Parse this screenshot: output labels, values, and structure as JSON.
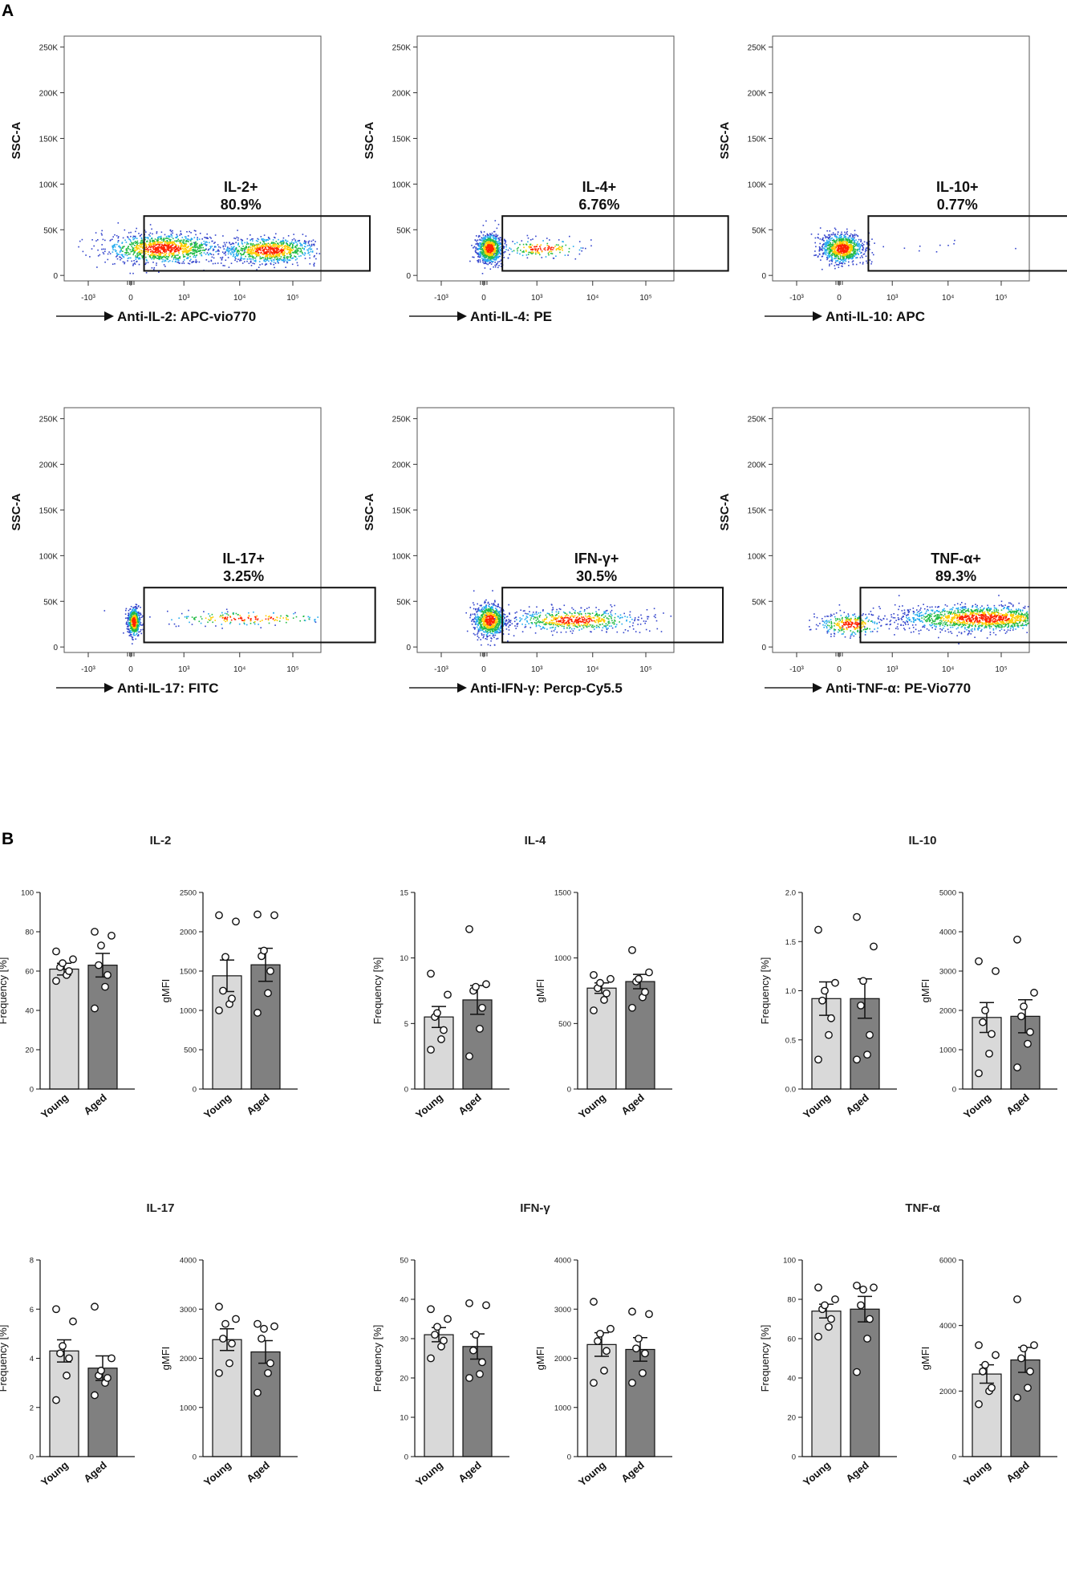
{
  "panel_labels": {
    "a": "A",
    "b": "B"
  },
  "colors": {
    "bar_young": "#d9d9d9",
    "bar_aged": "#808080",
    "gate": "#111111",
    "dots_low": "#3344cc",
    "dots_mid": "#22bb44",
    "dots_high": "#ff2200"
  },
  "chart_data": [
    {
      "type": "scatter",
      "kind": "flow",
      "ylabel": "SSC-A",
      "xlabel": "Anti-IL-2: APC-vio770",
      "yticks": [
        "0",
        "50K",
        "100K",
        "150K",
        "200K",
        "250K"
      ],
      "xticks": [
        "-10³",
        "0",
        "10³",
        "10⁴",
        "10⁵"
      ],
      "gate_label": "IL-2+",
      "gate_pct": "80.9%",
      "gate_x": [
        0.25,
        4.5
      ],
      "gate_y": [
        5,
        65
      ],
      "populations": [
        {
          "x": 0.6,
          "xsd": 0.55,
          "y": 30,
          "ysd": 8,
          "n": 1100
        },
        {
          "x": 2.6,
          "xsd": 0.45,
          "y": 28,
          "ysd": 7,
          "n": 900
        }
      ]
    },
    {
      "type": "scatter",
      "kind": "flow",
      "ylabel": "SSC-A",
      "xlabel": "Anti-IL-4: PE",
      "yticks": [
        "0",
        "50K",
        "100K",
        "150K",
        "200K",
        "250K"
      ],
      "xticks": [
        "-10³",
        "0",
        "10³",
        "10⁴",
        "10⁵"
      ],
      "gate_label": "IL-4+",
      "gate_pct": "6.76%",
      "gate_x": [
        0.35,
        4.6
      ],
      "gate_y": [
        5,
        65
      ],
      "populations": [
        {
          "x": 0.1,
          "xsd": 0.12,
          "y": 30,
          "ysd": 8,
          "n": 800
        },
        {
          "x": 1.1,
          "xsd": 0.4,
          "y": 30,
          "ysd": 5,
          "n": 160
        }
      ]
    },
    {
      "type": "scatter",
      "kind": "flow",
      "ylabel": "SSC-A",
      "xlabel": "Anti-IL-10: APC",
      "yticks": [
        "0",
        "50K",
        "100K",
        "150K",
        "200K",
        "250K"
      ],
      "xticks": [
        "-10³",
        "0",
        "10³",
        "10⁴",
        "10⁵"
      ],
      "gate_label": "IL-10+",
      "gate_pct": "0.77%",
      "gate_x": [
        0.55,
        4.5
      ],
      "gate_y": [
        5,
        65
      ],
      "populations": [
        {
          "x": 0.05,
          "xsd": 0.2,
          "y": 30,
          "ysd": 8,
          "n": 900
        },
        {
          "x": 2.3,
          "xsd": 1.0,
          "y": 27,
          "ysd": 6,
          "n": 12
        }
      ]
    },
    {
      "type": "scatter",
      "kind": "flow",
      "ylabel": "SSC-A",
      "xlabel": "Anti-IL-17: FITC",
      "yticks": [
        "0",
        "50K",
        "100K",
        "150K",
        "200K",
        "250K"
      ],
      "xticks": [
        "-10³",
        "0",
        "10³",
        "10⁴",
        "10⁵"
      ],
      "gate_label": "IL-17+",
      "gate_pct": "3.25%",
      "gate_x": [
        0.25,
        4.6
      ],
      "gate_y": [
        5,
        65
      ],
      "populations": [
        {
          "x": 0.05,
          "xsd": 0.06,
          "y": 28,
          "ysd": 8,
          "n": 500
        },
        {
          "x": 2.2,
          "xsd": 0.8,
          "y": 32,
          "ysd": 4,
          "n": 180
        }
      ]
    },
    {
      "type": "scatter",
      "kind": "flow",
      "ylabel": "SSC-A",
      "xlabel": "Anti-IFN-γ: Percp-Cy5.5",
      "yticks": [
        "0",
        "50K",
        "100K",
        "150K",
        "200K",
        "250K"
      ],
      "xticks": [
        "-10³",
        "0",
        "10³",
        "10⁴",
        "10⁵"
      ],
      "gate_label": "IFN-γ+",
      "gate_pct": "30.5%",
      "gate_x": [
        0.35,
        4.5
      ],
      "gate_y": [
        5,
        65
      ],
      "populations": [
        {
          "x": 0.1,
          "xsd": 0.15,
          "y": 30,
          "ysd": 9,
          "n": 800
        },
        {
          "x": 1.7,
          "xsd": 0.6,
          "y": 30,
          "ysd": 6,
          "n": 600
        }
      ]
    },
    {
      "type": "scatter",
      "kind": "flow",
      "ylabel": "SSC-A",
      "xlabel": "Anti-TNF-α: PE-Vio770",
      "yticks": [
        "0",
        "50K",
        "100K",
        "150K",
        "200K",
        "250K"
      ],
      "xticks": [
        "-10³",
        "0",
        "10³",
        "10⁴",
        "10⁵"
      ],
      "gate_label": "TNF-α+",
      "gate_pct": "89.3%",
      "gate_x": [
        0.4,
        4.6
      ],
      "gate_y": [
        5,
        65
      ],
      "populations": [
        {
          "x": 0.2,
          "xsd": 0.3,
          "y": 25,
          "ysd": 6,
          "n": 300
        },
        {
          "x": 2.7,
          "xsd": 0.8,
          "y": 32,
          "ysd": 7,
          "n": 1500
        }
      ]
    },
    {
      "type": "bar",
      "kind": "summary",
      "group_title": "IL-2",
      "ylabel": "Frequency [%]",
      "yticks": [
        "0",
        "20",
        "40",
        "60",
        "80",
        "100"
      ],
      "ylim": [
        0,
        100
      ],
      "categories": [
        "Young",
        "Aged"
      ],
      "values": [
        61,
        63
      ],
      "errors": [
        3,
        6
      ],
      "points": [
        [
          55,
          58,
          60,
          62,
          64,
          66,
          70
        ],
        [
          41,
          52,
          58,
          63,
          73,
          78,
          80
        ]
      ]
    },
    {
      "type": "bar",
      "kind": "summary",
      "group_title": "",
      "ylabel": "gMFI",
      "yticks": [
        "0",
        "500",
        "1000",
        "1500",
        "2000",
        "2500"
      ],
      "ylim": [
        0,
        2500
      ],
      "categories": [
        "Young",
        "Aged"
      ],
      "values": [
        1440,
        1580
      ],
      "errors": [
        200,
        210
      ],
      "points": [
        [
          1000,
          1080,
          1150,
          1250,
          1680,
          2130,
          2210
        ],
        [
          970,
          1220,
          1500,
          1690,
          1760,
          2210,
          2220
        ]
      ]
    },
    {
      "type": "bar",
      "kind": "summary",
      "group_title": "IL-4",
      "ylabel": "Frequency [%]",
      "yticks": [
        "0",
        "5",
        "10",
        "15"
      ],
      "ylim": [
        0,
        15
      ],
      "categories": [
        "Young",
        "Aged"
      ],
      "values": [
        5.5,
        6.8
      ],
      "errors": [
        0.8,
        1.1
      ],
      "points": [
        [
          3.0,
          3.8,
          4.5,
          5.5,
          5.8,
          7.2,
          8.8
        ],
        [
          2.5,
          4.6,
          6.2,
          7.5,
          7.8,
          8.0,
          12.2
        ]
      ]
    },
    {
      "type": "bar",
      "kind": "summary",
      "group_title": "",
      "ylabel": "gMFI",
      "yticks": [
        "0",
        "500",
        "1000",
        "1500"
      ],
      "ylim": [
        0,
        1500
      ],
      "categories": [
        "Young",
        "Aged"
      ],
      "values": [
        770,
        820
      ],
      "errors": [
        40,
        55
      ],
      "points": [
        [
          600,
          680,
          730,
          770,
          810,
          840,
          870
        ],
        [
          620,
          700,
          740,
          820,
          840,
          890,
          1060
        ]
      ]
    },
    {
      "type": "bar",
      "kind": "summary",
      "group_title": "IL-10",
      "ylabel": "Frequency [%]",
      "yticks": [
        "0.0",
        "0.5",
        "1.0",
        "1.5",
        "2.0"
      ],
      "ylim": [
        0,
        2.0
      ],
      "categories": [
        "Young",
        "Aged"
      ],
      "values": [
        0.92,
        0.92
      ],
      "errors": [
        0.17,
        0.2
      ],
      "points": [
        [
          0.3,
          0.55,
          0.72,
          0.9,
          1.0,
          1.08,
          1.62
        ],
        [
          0.3,
          0.35,
          0.55,
          0.85,
          1.1,
          1.45,
          1.75
        ]
      ]
    },
    {
      "type": "bar",
      "kind": "summary",
      "group_title": "",
      "ylabel": "gMFI",
      "yticks": [
        "0",
        "1000",
        "2000",
        "3000",
        "4000",
        "5000"
      ],
      "ylim": [
        0,
        5000
      ],
      "categories": [
        "Young",
        "Aged"
      ],
      "values": [
        1820,
        1850
      ],
      "errors": [
        380,
        420
      ],
      "points": [
        [
          400,
          900,
          1400,
          1700,
          2000,
          3000,
          3250
        ],
        [
          550,
          1150,
          1450,
          1850,
          2100,
          2450,
          3800
        ]
      ]
    },
    {
      "type": "bar",
      "kind": "summary",
      "group_title": "IL-17",
      "ylabel": "Frequency [%]",
      "yticks": [
        "0",
        "2",
        "4",
        "6",
        "8"
      ],
      "ylim": [
        0,
        8
      ],
      "categories": [
        "Young",
        "Aged"
      ],
      "values": [
        4.3,
        3.6
      ],
      "errors": [
        0.45,
        0.5
      ],
      "points": [
        [
          2.3,
          3.3,
          4.0,
          4.2,
          4.5,
          5.5,
          6.0
        ],
        [
          2.5,
          3.0,
          3.2,
          3.3,
          3.5,
          4.0,
          6.1
        ]
      ]
    },
    {
      "type": "bar",
      "kind": "summary",
      "group_title": "",
      "ylabel": "gMFI",
      "yticks": [
        "0",
        "1000",
        "2000",
        "3000",
        "4000"
      ],
      "ylim": [
        0,
        4000
      ],
      "categories": [
        "Young",
        "Aged"
      ],
      "values": [
        2380,
        2130
      ],
      "errors": [
        220,
        230
      ],
      "points": [
        [
          1700,
          1900,
          2300,
          2400,
          2700,
          2800,
          3050
        ],
        [
          1300,
          1700,
          1900,
          2400,
          2600,
          2650,
          2700
        ]
      ]
    },
    {
      "type": "bar",
      "kind": "summary",
      "group_title": "IFN-γ",
      "ylabel": "Frequency [%]",
      "yticks": [
        "0",
        "10",
        "20",
        "30",
        "40",
        "50"
      ],
      "ylim": [
        0,
        50
      ],
      "categories": [
        "Young",
        "Aged"
      ],
      "values": [
        31,
        28
      ],
      "errors": [
        1.8,
        3.2
      ],
      "points": [
        [
          25,
          28,
          29.5,
          31,
          33,
          35,
          37.5
        ],
        [
          20,
          21,
          24,
          27,
          31,
          38.5,
          39
        ]
      ]
    },
    {
      "type": "bar",
      "kind": "summary",
      "group_title": "",
      "ylabel": "gMFI",
      "yticks": [
        "0",
        "1000",
        "2000",
        "3000",
        "4000"
      ],
      "ylim": [
        0,
        4000
      ],
      "categories": [
        "Young",
        "Aged"
      ],
      "values": [
        2280,
        2180
      ],
      "errors": [
        240,
        240
      ],
      "points": [
        [
          1500,
          1750,
          2150,
          2350,
          2500,
          2600,
          3150
        ],
        [
          1500,
          1700,
          2100,
          2200,
          2400,
          2900,
          2950
        ]
      ]
    },
    {
      "type": "bar",
      "kind": "summary",
      "group_title": "TNF-α",
      "ylabel": "Frequency [%]",
      "yticks": [
        "0",
        "20",
        "40",
        "60",
        "80",
        "100"
      ],
      "ylim": [
        0,
        100
      ],
      "categories": [
        "Young",
        "Aged"
      ],
      "values": [
        74,
        75
      ],
      "errors": [
        3.5,
        6.5
      ],
      "points": [
        [
          61,
          66,
          70,
          75,
          77,
          80,
          86
        ],
        [
          43,
          60,
          70,
          77,
          85,
          86,
          87
        ]
      ]
    },
    {
      "type": "bar",
      "kind": "summary",
      "group_title": "",
      "ylabel": "gMFI",
      "yticks": [
        "0",
        "2000",
        "4000",
        "6000"
      ],
      "ylim": [
        0,
        6000
      ],
      "categories": [
        "Young",
        "Aged"
      ],
      "values": [
        2520,
        2950
      ],
      "errors": [
        280,
        380
      ],
      "points": [
        [
          1600,
          2000,
          2100,
          2600,
          2800,
          3100,
          3400
        ],
        [
          1800,
          2100,
          2600,
          3000,
          3300,
          3400,
          4800
        ]
      ]
    }
  ]
}
